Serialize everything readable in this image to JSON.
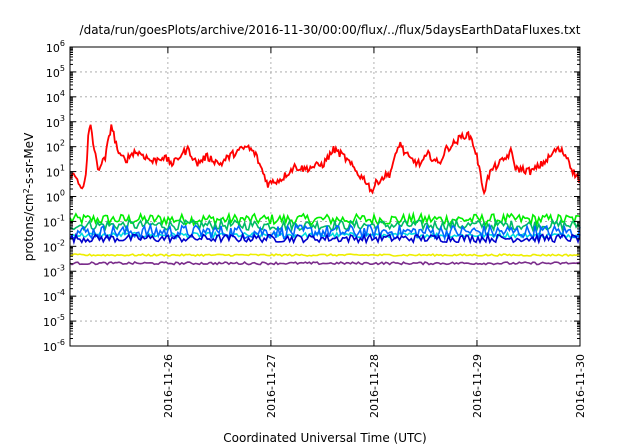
{
  "chart_data": {
    "type": "line",
    "title": "/data/run/goesPlots/archive/2016-11-30/00:00/flux/../flux/5daysEarthDataFluxes.txt",
    "xlabel": "Coordinated Universal Time (UTC)",
    "ylabel_main": "protons/cm",
    "ylabel_sup": "2",
    "ylabel_rest": "-s-sr-MeV",
    "y_scale": "log",
    "ylim_exp": [
      -6,
      6
    ],
    "xlim": [
      0,
      4.95
    ],
    "x_ticks": [
      {
        "value": 0.95,
        "label": "2016-11-26"
      },
      {
        "value": 1.95,
        "label": "2016-11-27"
      },
      {
        "value": 2.95,
        "label": "2016-11-28"
      },
      {
        "value": 3.95,
        "label": "2016-11-29"
      },
      {
        "value": 4.95,
        "label": "2016-11-30"
      }
    ],
    "y_tick_exponents": [
      -6,
      -5,
      -4,
      -3,
      -2,
      -1,
      0,
      1,
      2,
      3,
      4,
      5,
      6
    ],
    "grid": true,
    "legend": "none",
    "series": [
      {
        "color": "#ff0000",
        "noise": 0.15,
        "points": [
          [
            0.0,
            0.9
          ],
          [
            0.05,
            0.8
          ],
          [
            0.1,
            0.5
          ],
          [
            0.13,
            0.3
          ],
          [
            0.16,
            1.0
          ],
          [
            0.18,
            2.6
          ],
          [
            0.2,
            2.9
          ],
          [
            0.23,
            2.0
          ],
          [
            0.27,
            1.1
          ],
          [
            0.3,
            1.3
          ],
          [
            0.34,
            1.5
          ],
          [
            0.38,
            2.4
          ],
          [
            0.4,
            2.9
          ],
          [
            0.43,
            2.4
          ],
          [
            0.48,
            1.6
          ],
          [
            0.55,
            1.5
          ],
          [
            0.62,
            1.8
          ],
          [
            0.7,
            1.7
          ],
          [
            0.8,
            1.4
          ],
          [
            0.9,
            1.6
          ],
          [
            1.0,
            1.3
          ],
          [
            1.08,
            1.7
          ],
          [
            1.15,
            1.9
          ],
          [
            1.23,
            1.3
          ],
          [
            1.32,
            1.6
          ],
          [
            1.38,
            1.5
          ],
          [
            1.46,
            1.3
          ],
          [
            1.54,
            1.6
          ],
          [
            1.62,
            1.8
          ],
          [
            1.72,
            2.0
          ],
          [
            1.8,
            1.7
          ],
          [
            1.87,
            1.0
          ],
          [
            1.92,
            0.5
          ],
          [
            1.98,
            0.6
          ],
          [
            2.05,
            0.7
          ],
          [
            2.1,
            0.9
          ],
          [
            2.18,
            1.2
          ],
          [
            2.28,
            1.1
          ],
          [
            2.36,
            1.2
          ],
          [
            2.46,
            1.3
          ],
          [
            2.56,
            1.9
          ],
          [
            2.66,
            1.6
          ],
          [
            2.74,
            1.2
          ],
          [
            2.8,
            0.9
          ],
          [
            2.88,
            0.6
          ],
          [
            2.93,
            0.2
          ],
          [
            2.98,
            0.6
          ],
          [
            3.05,
            0.8
          ],
          [
            3.1,
            0.9
          ],
          [
            3.16,
            1.6
          ],
          [
            3.2,
            2.2
          ],
          [
            3.24,
            1.8
          ],
          [
            3.3,
            1.5
          ],
          [
            3.4,
            1.3
          ],
          [
            3.48,
            1.7
          ],
          [
            3.58,
            1.3
          ],
          [
            3.65,
            1.9
          ],
          [
            3.72,
            2.1
          ],
          [
            3.8,
            2.4
          ],
          [
            3.85,
            2.5
          ],
          [
            3.9,
            2.3
          ],
          [
            3.95,
            1.6
          ],
          [
            3.99,
            0.7
          ],
          [
            4.02,
            0.2
          ],
          [
            4.06,
            0.8
          ],
          [
            4.1,
            1.1
          ],
          [
            4.16,
            1.3
          ],
          [
            4.22,
            1.5
          ],
          [
            4.28,
            1.8
          ],
          [
            4.33,
            1.1
          ],
          [
            4.38,
            1.1
          ],
          [
            4.48,
            1.0
          ],
          [
            4.58,
            1.3
          ],
          [
            4.66,
            1.6
          ],
          [
            4.72,
            1.9
          ],
          [
            4.78,
            1.8
          ],
          [
            4.84,
            1.5
          ],
          [
            4.87,
            1.1
          ],
          [
            4.9,
            0.9
          ],
          [
            4.93,
            0.8
          ],
          [
            4.95,
            0.6
          ]
        ]
      },
      {
        "color": "#00ee00",
        "base": -0.92,
        "noise": 0.22
      },
      {
        "color": "#00bb66",
        "base": -1.15,
        "noise": 0.2
      },
      {
        "color": "#00dddd",
        "base": -1.55,
        "noise": 0.1
      },
      {
        "color": "#0066ff",
        "base": -1.42,
        "noise": 0.28
      },
      {
        "color": "#0000cc",
        "base": -1.68,
        "noise": 0.16
      },
      {
        "color": "#eeee00",
        "base": -2.35,
        "noise": 0.04
      },
      {
        "color": "#7b2d8b",
        "base": -2.68,
        "noise": 0.05
      }
    ]
  }
}
